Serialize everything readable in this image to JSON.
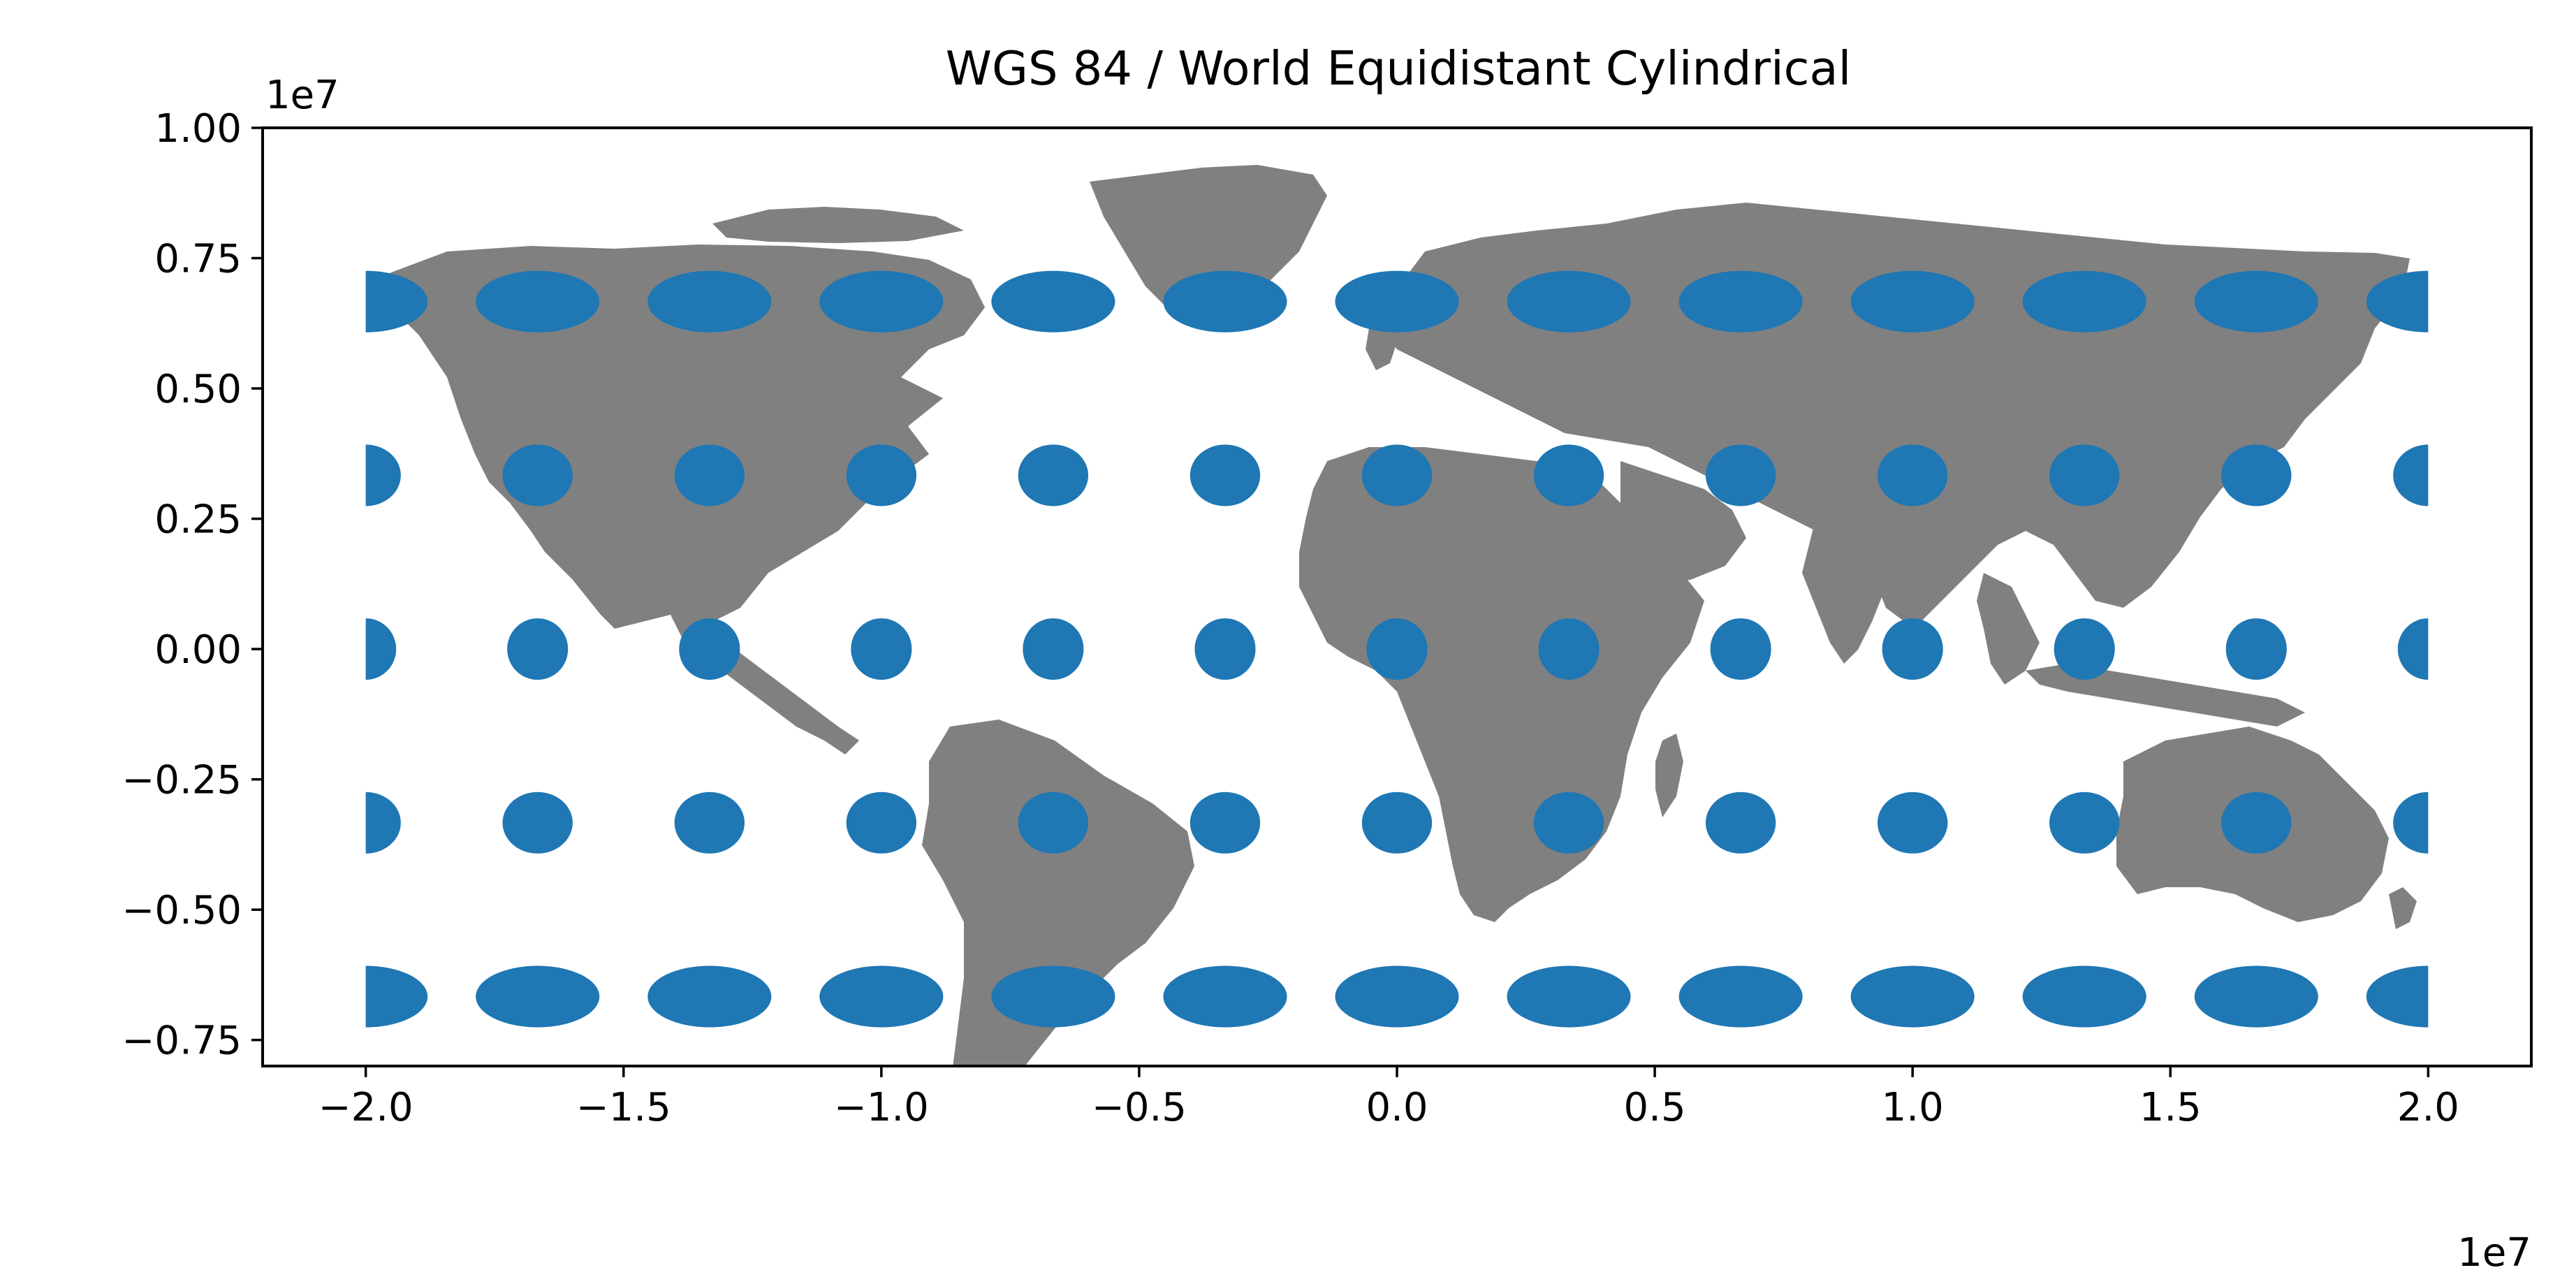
{
  "chart_data": {
    "type": "map",
    "title": "WGS 84 / World Equidistant Cylindrical",
    "xlabel": "",
    "ylabel": "",
    "x_offset_text": "1e7",
    "y_offset_text": "1e7",
    "xlim": [
      -2.2,
      2.2
    ],
    "ylim": [
      -0.8,
      1.0
    ],
    "x_ticks": [
      -2.0,
      -1.5,
      -1.0,
      -0.5,
      0.0,
      0.5,
      1.0,
      1.5,
      2.0
    ],
    "x_tick_labels": [
      "−2.0",
      "−1.5",
      "−1.0",
      "−0.5",
      "0.0",
      "0.5",
      "1.0",
      "1.5",
      "2.0"
    ],
    "y_ticks": [
      1.0,
      0.75,
      0.5,
      0.25,
      0.0,
      -0.25,
      -0.5,
      -0.75
    ],
    "y_tick_labels": [
      "1.00",
      "0.75",
      "0.50",
      "0.25",
      "0.00",
      "−0.25",
      "−0.50",
      "−0.75"
    ],
    "grid": false,
    "land_color": "#808080",
    "indicatrix_color": "#1f77b4",
    "indicatrix_columns_x": [
      -2.0,
      -1.6667,
      -1.3333,
      -1.0,
      -0.6667,
      -0.3333,
      0.0,
      0.3333,
      0.6667,
      1.0,
      1.3333,
      1.6667,
      2.0
    ],
    "indicatrix_rows": [
      {
        "y": 0.6667,
        "width": 0.24,
        "height": 0.118
      },
      {
        "y": 0.3333,
        "width": 0.136,
        "height": 0.118
      },
      {
        "y": 0.0,
        "width": 0.118,
        "height": 0.118
      },
      {
        "y": -0.3333,
        "width": 0.136,
        "height": 0.118
      },
      {
        "y": -0.6667,
        "width": 0.24,
        "height": 0.118
      }
    ],
    "map_extent_lon": [
      -2.0,
      2.0
    ]
  }
}
